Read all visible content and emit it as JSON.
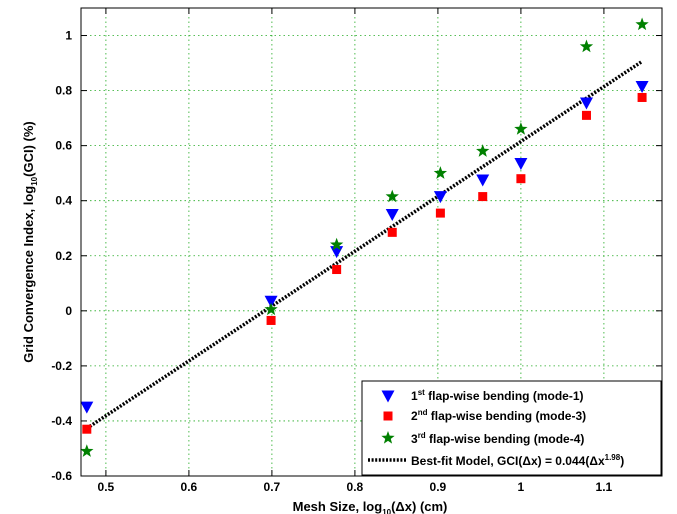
{
  "chart_data": {
    "type": "scatter",
    "xlabel_main": "Mesh Size, log",
    "xlabel_sub": "10",
    "xlabel_tail": "(Δx) (cm)",
    "ylabel_main": "Grid Convergence Index, log",
    "ylabel_sub": "10",
    "ylabel_tail": "(GCI) (%)",
    "xlim": [
      0.47,
      1.17
    ],
    "ylim": [
      -0.6,
      1.1
    ],
    "x_ticks": [
      0.5,
      0.6,
      0.7,
      0.8,
      0.9,
      1.0,
      1.1
    ],
    "x_tick_labels": [
      "0.5",
      "0.6",
      "0.7",
      "0.8",
      "0.9",
      "1",
      "1.1"
    ],
    "y_ticks": [
      -0.6,
      -0.4,
      -0.2,
      0,
      0.2,
      0.4,
      0.6,
      0.8,
      1.0
    ],
    "y_tick_labels": [
      "-0.6",
      "-0.4",
      "-0.2",
      "0",
      "0.2",
      "0.4",
      "0.6",
      "0.8",
      "1"
    ],
    "grid": true,
    "legend_position": "bottom-right",
    "series": [
      {
        "name_prefix": "1",
        "name_sup": "st",
        "name_suffix": " flap-wise bending (mode-1)",
        "marker": "triangle-down",
        "color": "#0000ff",
        "x": [
          0.477,
          0.699,
          0.778,
          0.845,
          0.903,
          0.954,
          1.0,
          1.079,
          1.146
        ],
        "y": [
          -0.35,
          0.035,
          0.215,
          0.35,
          0.415,
          0.475,
          0.535,
          0.755,
          0.815
        ]
      },
      {
        "name_prefix": "2",
        "name_sup": "nd",
        "name_suffix": " flap-wise bending (mode-3)",
        "marker": "square",
        "color": "#ff0000",
        "x": [
          0.477,
          0.699,
          0.778,
          0.845,
          0.903,
          0.954,
          1.0,
          1.079,
          1.146
        ],
        "y": [
          -0.43,
          -0.035,
          0.15,
          0.285,
          0.355,
          0.415,
          0.48,
          0.71,
          0.775
        ]
      },
      {
        "name_prefix": "3",
        "name_sup": "rd",
        "name_suffix": " flap-wise bending (mode-4)",
        "marker": "star",
        "color": "#008000",
        "x": [
          0.477,
          0.699,
          0.778,
          0.845,
          0.903,
          0.954,
          1.0,
          1.079,
          1.146
        ],
        "y": [
          -0.51,
          0.005,
          0.24,
          0.415,
          0.5,
          0.58,
          0.66,
          0.96,
          1.04
        ]
      }
    ],
    "fit": {
      "name_prefix": "Best-fit Model, GCI(Δx) = 0.044(Δx",
      "name_sup": "1.98",
      "name_suffix": ")",
      "line_style": "dotted",
      "color": "#000000",
      "x": [
        0.477,
        1.146
      ],
      "y": [
        -0.427,
        0.906
      ]
    }
  }
}
